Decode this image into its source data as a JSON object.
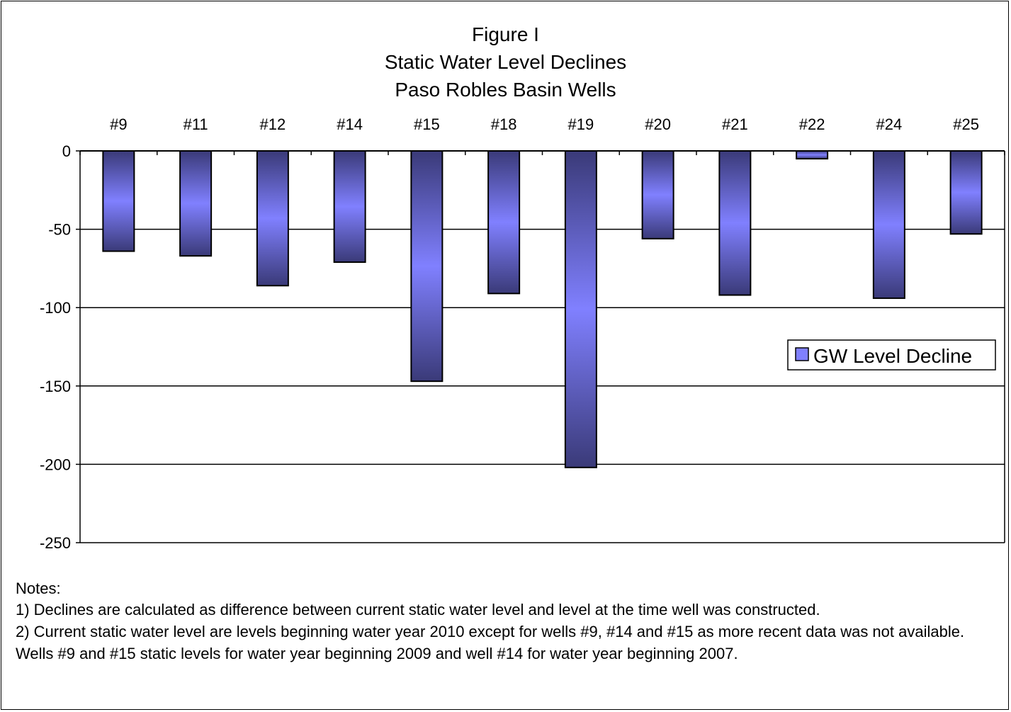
{
  "chart_data": {
    "type": "bar",
    "title_lines": [
      "Figure I",
      "Static Water Level Declines",
      "Paso Robles Basin Wells"
    ],
    "categories": [
      "#9",
      "#11",
      "#12",
      "#14",
      "#15",
      "#18",
      "#19",
      "#20",
      "#21",
      "#22",
      "#24",
      "#25"
    ],
    "series": [
      {
        "name": "GW Level Decline",
        "values": [
          -64,
          -67,
          -86,
          -71,
          -147,
          -91,
          -202,
          -56,
          -92,
          -5,
          -94,
          -53
        ]
      }
    ],
    "ylim": [
      -250,
      0
    ],
    "yticks": [
      0,
      -50,
      -100,
      -150,
      -200,
      -250
    ],
    "ytick_labels": [
      "0",
      "-50",
      "-100",
      "-150",
      "-200",
      "-250"
    ],
    "grid": true,
    "legend_position": "right",
    "colors": {
      "bar_light": "#8080ff",
      "bar_dark": "#3a3a78",
      "outline": "#000000"
    }
  },
  "notes": {
    "heading": "Notes:",
    "note1": "1) Declines are calculated as difference between current static water level and level at the time well was constructed.",
    "note2": "2) Current static water level are levels beginning water year 2010 except for wells #9, #14 and #15 as more recent data was not available.  Wells #9 and #15 static levels for water year beginning 2009 and well #14 for water year beginning 2007."
  }
}
